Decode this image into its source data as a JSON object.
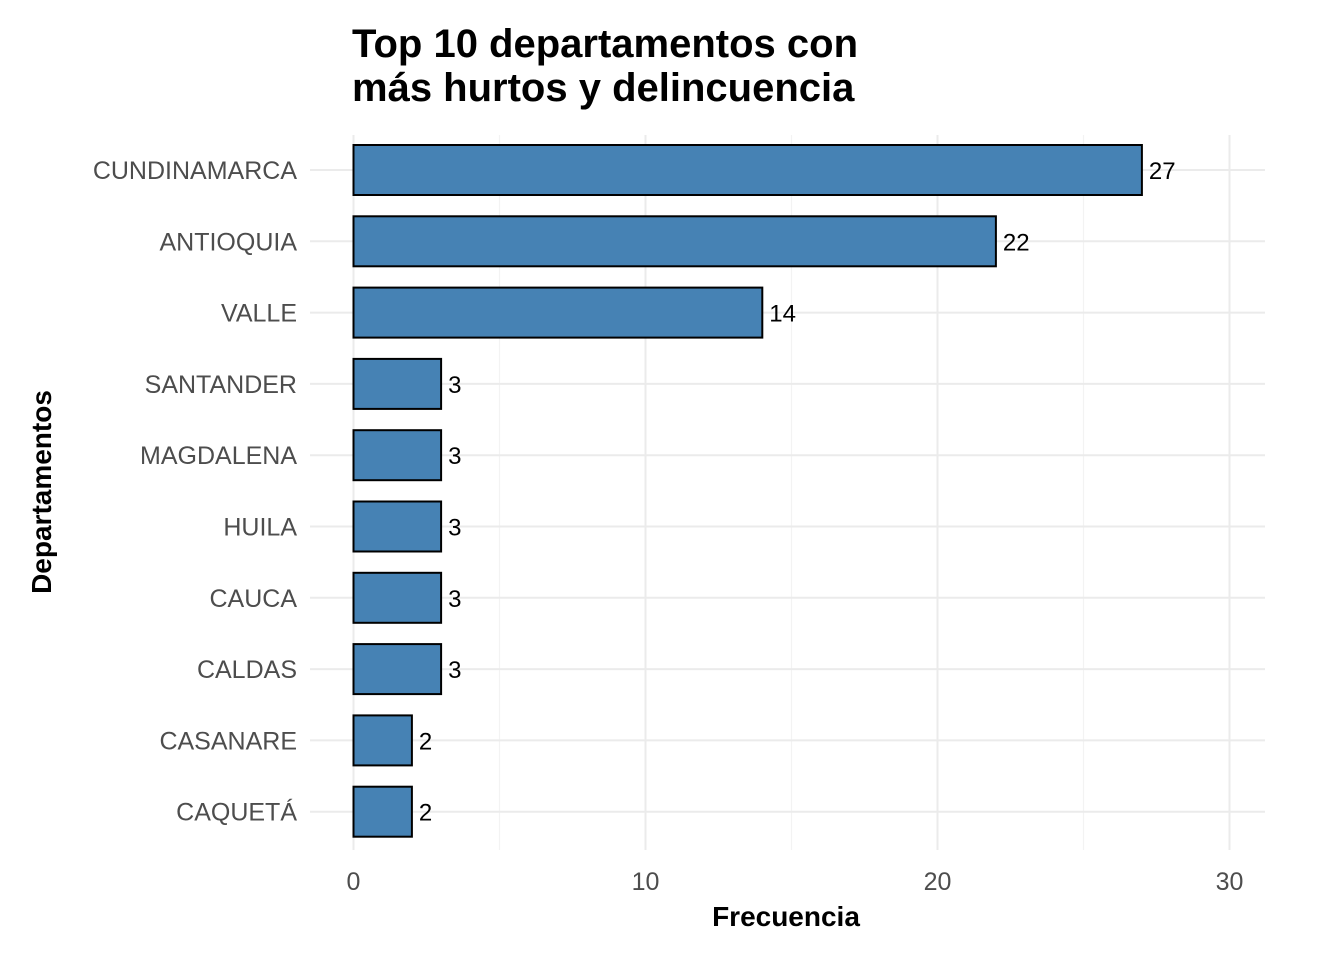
{
  "chart_data": {
    "type": "bar",
    "orientation": "horizontal",
    "title_lines": [
      "Top 10 departamentos con",
      "más hurtos y delincuencia"
    ],
    "xlabel": "Frecuencia",
    "ylabel": "Departamentos",
    "categories": [
      "CUNDINAMARCA",
      "ANTIOQUIA",
      "VALLE",
      "SANTANDER",
      "MAGDALENA",
      "HUILA",
      "CAUCA",
      "CALDAS",
      "CASANARE",
      "CAQUETÁ"
    ],
    "values": [
      27,
      22,
      14,
      3,
      3,
      3,
      3,
      3,
      2,
      2
    ],
    "data_labels": [
      "27",
      "22",
      "14",
      "3",
      "3",
      "3",
      "3",
      "3",
      "2",
      "2"
    ],
    "xlim": [
      0,
      31
    ],
    "x_ticks": [
      0,
      10,
      20,
      30
    ],
    "x_tick_labels": [
      "0",
      "10",
      "20",
      "30"
    ],
    "grid": true,
    "bar_color": "#4682B4",
    "bar_edge_color": "#000000"
  }
}
